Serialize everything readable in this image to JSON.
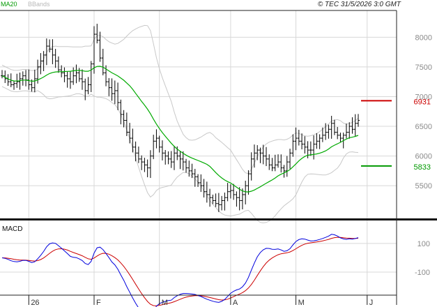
{
  "header": {
    "copyright": "© TEC 31/5/2026 3:0 GMT",
    "legend_ma20": "MA20",
    "legend_bbands": "BBands"
  },
  "chart_data": [
    {
      "type": "ohlc",
      "series_names": [
        "MA20",
        "BBands"
      ],
      "ylim": [
        4950,
        8450
      ],
      "yticks": [
        "5500",
        "6000",
        "6500",
        "7000",
        "7500",
        "8000"
      ],
      "xticks": [
        {
          "label": "26",
          "index": 9
        },
        {
          "label": "F",
          "index": 31
        },
        {
          "label": "M",
          "index": 53
        },
        {
          "label": "A",
          "index": 77
        },
        {
          "label": "M",
          "index": 99
        },
        {
          "label": "J",
          "index": 123
        }
      ],
      "levels": [
        {
          "name": "resistance",
          "value": 6931,
          "label": "6931",
          "color": "#cc0000"
        },
        {
          "name": "support",
          "value": 5833,
          "label": "5833",
          "color": "#009900"
        }
      ],
      "grid": true,
      "colors": {
        "bars": "#000000",
        "ma20": "#00aa00",
        "bands": "#c8c8c8",
        "grid": "#d8d8d8"
      }
    },
    {
      "type": "line",
      "title": "MACD",
      "ylim": [
        -260,
        250
      ],
      "yticks": [
        "100",
        "-100"
      ],
      "series": [
        {
          "name": "macd",
          "color": "#0000dd"
        },
        {
          "name": "signal",
          "color": "#cc0000"
        }
      ],
      "grid": true
    }
  ]
}
